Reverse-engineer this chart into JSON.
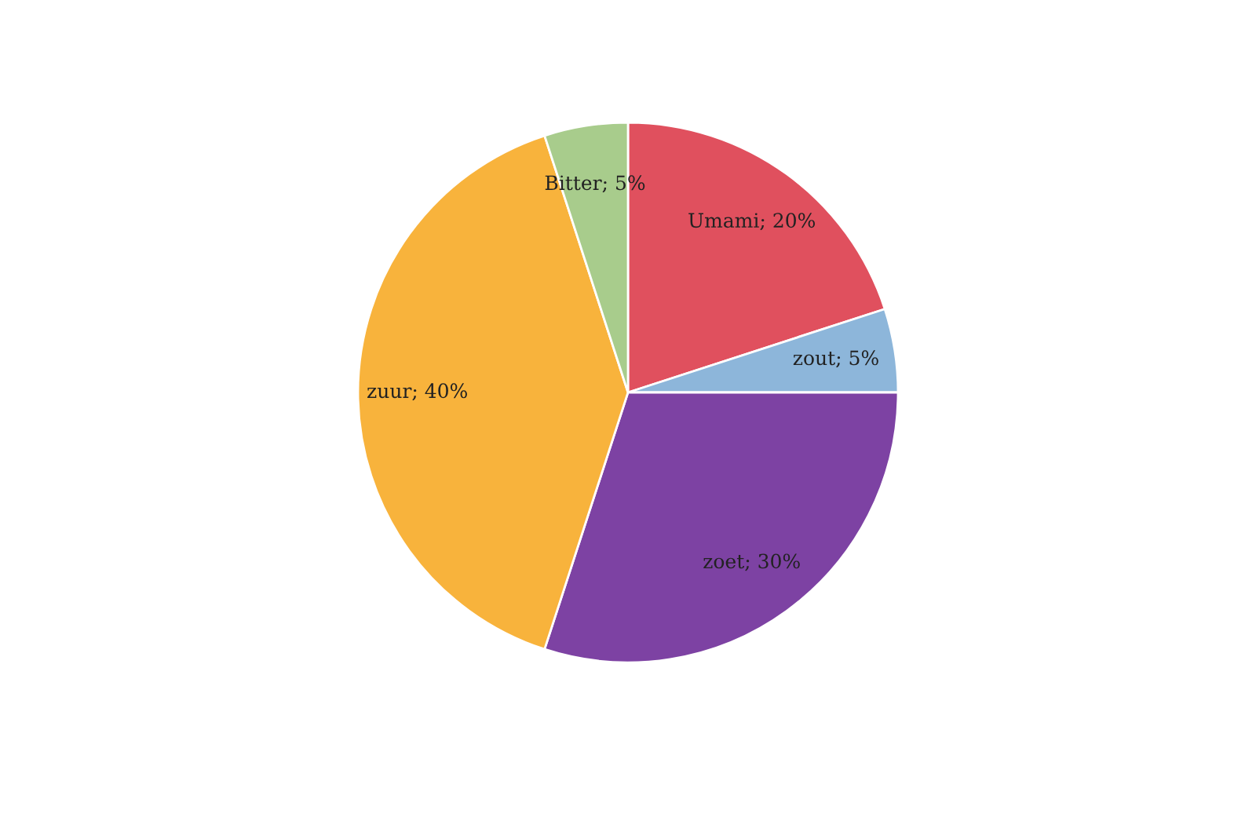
{
  "chart_data": {
    "type": "pie",
    "categories": [
      "Umami; 20%",
      "zout; 5%",
      "zoet; 30%",
      "zuur; 40%",
      "Bitter; 5%"
    ],
    "values": [
      20,
      5,
      30,
      40,
      5
    ],
    "colors": [
      "#e0505e",
      "#8db6da",
      "#7d42a3",
      "#f8b33c",
      "#a8cc8c"
    ]
  }
}
